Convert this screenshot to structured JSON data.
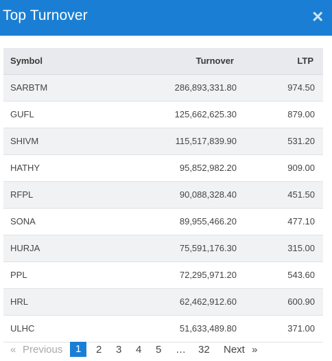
{
  "header": {
    "title": "Top Turnover",
    "close_icon": "close-icon"
  },
  "table": {
    "columns": [
      "Symbol",
      "Turnover",
      "LTP"
    ],
    "rows": [
      [
        "SARBTM",
        "286,893,331.80",
        "974.50"
      ],
      [
        "GUFL",
        "125,662,625.30",
        "879.00"
      ],
      [
        "SHIVM",
        "115,517,839.90",
        "531.20"
      ],
      [
        "HATHY",
        "95,852,982.20",
        "909.00"
      ],
      [
        "RFPL",
        "90,088,328.40",
        "451.50"
      ],
      [
        "SONA",
        "89,955,466.20",
        "477.10"
      ],
      [
        "HURJA",
        "75,591,176.30",
        "315.00"
      ],
      [
        "PPL",
        "72,295,971.20",
        "543.60"
      ],
      [
        "HRL",
        "62,462,912.60",
        "600.90"
      ],
      [
        "ULHC",
        "51,633,489.80",
        "371.00"
      ]
    ]
  },
  "pagination": {
    "prev_arrow": "«",
    "prev_label": "Previous",
    "pages": [
      "1",
      "2",
      "3",
      "4",
      "5"
    ],
    "ellipsis": "…",
    "last_page": "32",
    "next_label": "Next",
    "next_arrow": "»",
    "current_page": "1"
  }
}
